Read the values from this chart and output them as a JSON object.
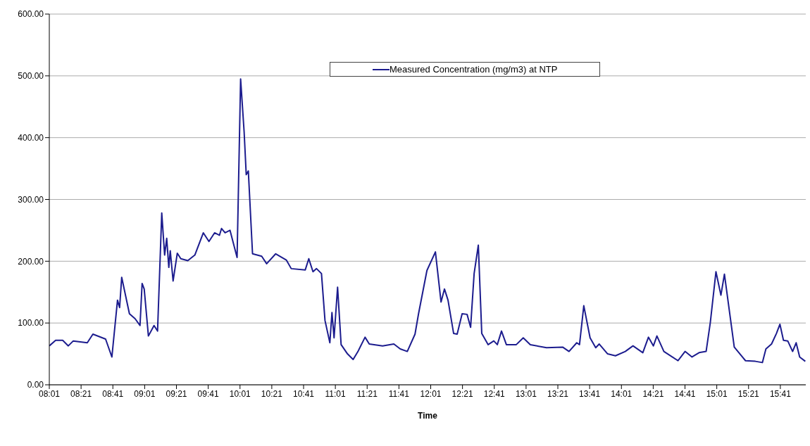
{
  "chart_data": {
    "type": "line",
    "xlabel": "Time",
    "x": [
      8.017,
      8.083,
      8.157,
      8.216,
      8.268,
      8.415,
      8.474,
      8.607,
      8.673,
      8.732,
      8.754,
      8.776,
      8.857,
      8.916,
      8.968,
      8.99,
      9.012,
      9.056,
      9.115,
      9.152,
      9.196,
      9.226,
      9.248,
      9.27,
      9.285,
      9.315,
      9.359,
      9.396,
      9.469,
      9.543,
      9.632,
      9.691,
      9.75,
      9.801,
      9.823,
      9.86,
      9.912,
      9.986,
      10.023,
      10.06,
      10.082,
      10.104,
      10.148,
      10.244,
      10.296,
      10.391,
      10.502,
      10.554,
      10.701,
      10.738,
      10.782,
      10.819,
      10.871,
      10.908,
      10.959,
      10.981,
      11.003,
      11.04,
      11.077,
      11.144,
      11.203,
      11.254,
      11.328,
      11.372,
      11.512,
      11.63,
      11.697,
      11.771,
      11.852,
      11.889,
      11.977,
      12.066,
      12.125,
      12.161,
      12.198,
      12.257,
      12.294,
      12.346,
      12.398,
      12.435,
      12.472,
      12.516,
      12.552,
      12.619,
      12.678,
      12.715,
      12.759,
      12.81,
      12.914,
      12.987,
      13.061,
      13.231,
      13.4,
      13.467,
      13.548,
      13.577,
      13.622,
      13.688,
      13.747,
      13.784,
      13.872,
      13.954,
      14.057,
      14.138,
      14.241,
      14.3,
      14.352,
      14.389,
      14.462,
      14.61,
      14.684,
      14.757,
      14.831,
      14.905,
      14.949,
      15.008,
      15.06,
      15.097,
      15.2,
      15.318,
      15.421,
      15.495,
      15.532,
      15.591,
      15.642,
      15.679,
      15.716,
      15.761,
      15.812,
      15.849,
      15.886,
      15.945
    ],
    "series": [
      {
        "name": "Measured Concentration (mg/m3) at NTP",
        "color": "#1c1c8e",
        "values": [
          63,
          72,
          72,
          63,
          71,
          68,
          82,
          74,
          45,
          137,
          125,
          174,
          115,
          107,
          96,
          164,
          155,
          79,
          96,
          87,
          278,
          210,
          237,
          190,
          217,
          168,
          213,
          204,
          201,
          210,
          246,
          232,
          246,
          242,
          253,
          246,
          250,
          206,
          495,
          409,
          340,
          346,
          212,
          208,
          196,
          212,
          202,
          188,
          186,
          204,
          183,
          188,
          180,
          104,
          68,
          117,
          76,
          158,
          65,
          50,
          41,
          54,
          77,
          66,
          63,
          66,
          58,
          54,
          82,
          115,
          185,
          215,
          134,
          155,
          137,
          83,
          82,
          115,
          114,
          93,
          180,
          226,
          83,
          65,
          71,
          65,
          87,
          65,
          65,
          76,
          65,
          60,
          61,
          54,
          68,
          65,
          128,
          76,
          60,
          66,
          50,
          47,
          54,
          63,
          52,
          77,
          63,
          79,
          54,
          39,
          54,
          45,
          52,
          54,
          101,
          183,
          145,
          179,
          61,
          39,
          38,
          36,
          58,
          66,
          83,
          98,
          72,
          71,
          54,
          68,
          45,
          38
        ]
      }
    ],
    "xlim": [
      8.0167,
      15.95
    ],
    "xticks": [
      {
        "value": 8.0167,
        "label": "08:01"
      },
      {
        "value": 8.35,
        "label": "08:21"
      },
      {
        "value": 8.6833,
        "label": "08:41"
      },
      {
        "value": 9.0167,
        "label": "09:01"
      },
      {
        "value": 9.35,
        "label": "09:21"
      },
      {
        "value": 9.6833,
        "label": "09:41"
      },
      {
        "value": 10.0167,
        "label": "10:01"
      },
      {
        "value": 10.35,
        "label": "10:21"
      },
      {
        "value": 10.6833,
        "label": "10:41"
      },
      {
        "value": 11.0167,
        "label": "11:01"
      },
      {
        "value": 11.35,
        "label": "11:21"
      },
      {
        "value": 11.6833,
        "label": "11:41"
      },
      {
        "value": 12.0167,
        "label": "12:01"
      },
      {
        "value": 12.35,
        "label": "12:21"
      },
      {
        "value": 12.6833,
        "label": "12:41"
      },
      {
        "value": 13.0167,
        "label": "13:01"
      },
      {
        "value": 13.35,
        "label": "13:21"
      },
      {
        "value": 13.6833,
        "label": "13:41"
      },
      {
        "value": 14.0167,
        "label": "14:01"
      },
      {
        "value": 14.35,
        "label": "14:21"
      },
      {
        "value": 14.6833,
        "label": "14:41"
      },
      {
        "value": 15.0167,
        "label": "15:01"
      },
      {
        "value": 15.35,
        "label": "15:21"
      },
      {
        "value": 15.6833,
        "label": "15:41"
      }
    ],
    "ylim": [
      0,
      600
    ],
    "yticks": [
      {
        "value": 0,
        "label": "0.00"
      },
      {
        "value": 100,
        "label": "100.00"
      },
      {
        "value": 200,
        "label": "200.00"
      },
      {
        "value": 300,
        "label": "300.00"
      },
      {
        "value": 400,
        "label": "400.00"
      },
      {
        "value": 500,
        "label": "500.00"
      },
      {
        "value": 600,
        "label": "600.00"
      }
    ],
    "grid": "y",
    "legend": "top",
    "marker": "none",
    "line_style": "solid"
  }
}
